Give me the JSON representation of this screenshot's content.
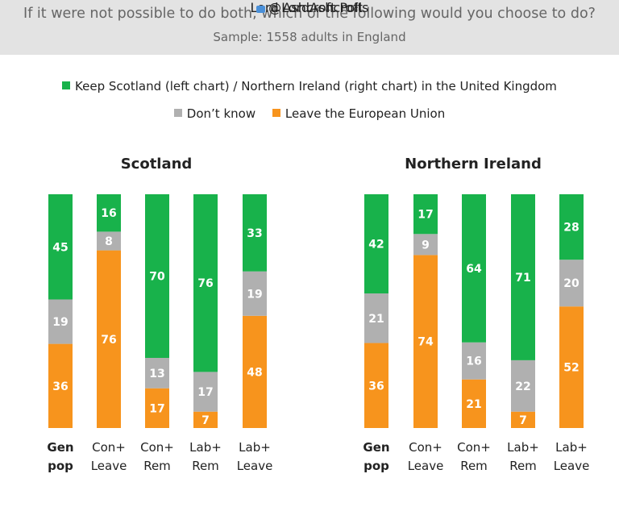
{
  "header": {
    "question": "If it were not possible to do both, which of the following would you choose to do?",
    "sample": "Sample: 1558 adults in England"
  },
  "legend": {
    "keep": "Keep Scotland (left chart) / Northern Ireland (right chart) in the United Kingdom",
    "dontknow": "Don’t know",
    "leave": "Leave the European Union"
  },
  "colors": {
    "keep": "#18b24b",
    "dontknow": "#b0b0b0",
    "leave": "#f7941d"
  },
  "footer": {
    "brand": "Lord Ashcroft Polls",
    "handle": "@LordAshcroft"
  },
  "chart_data": [
    {
      "type": "bar",
      "stacked": true,
      "title": "Scotland",
      "categories": [
        [
          "Gen",
          "pop"
        ],
        [
          "Con+",
          "Leave"
        ],
        [
          "Con+",
          "Rem"
        ],
        [
          "Lab+",
          "Rem"
        ],
        [
          "Lab+",
          "Leave"
        ]
      ],
      "bold_categories": [
        0
      ],
      "series": [
        {
          "name": "Leave the European Union",
          "key": "leave",
          "values": [
            36,
            76,
            17,
            7,
            48
          ]
        },
        {
          "name": "Don’t know",
          "key": "dontknow",
          "values": [
            19,
            8,
            13,
            17,
            19
          ]
        },
        {
          "name": "Keep Scotland (left chart) / Northern Ireland (right chart) in the United Kingdom",
          "key": "keep",
          "values": [
            45,
            16,
            70,
            76,
            33
          ]
        }
      ]
    },
    {
      "type": "bar",
      "stacked": true,
      "title": "Northern Ireland",
      "categories": [
        [
          "Gen",
          "pop"
        ],
        [
          "Con+",
          "Leave"
        ],
        [
          "Con+",
          "Rem"
        ],
        [
          "Lab+",
          "Rem"
        ],
        [
          "Lab+",
          "Leave"
        ]
      ],
      "bold_categories": [
        0
      ],
      "series": [
        {
          "name": "Leave the European Union",
          "key": "leave",
          "values": [
            36,
            74,
            21,
            7,
            52
          ]
        },
        {
          "name": "Don’t know",
          "key": "dontknow",
          "values": [
            21,
            9,
            16,
            22,
            20
          ]
        },
        {
          "name": "Keep Scotland (left chart) / Northern Ireland (right chart) in the United Kingdom",
          "key": "keep",
          "values": [
            42,
            17,
            64,
            71,
            28
          ]
        }
      ]
    }
  ]
}
